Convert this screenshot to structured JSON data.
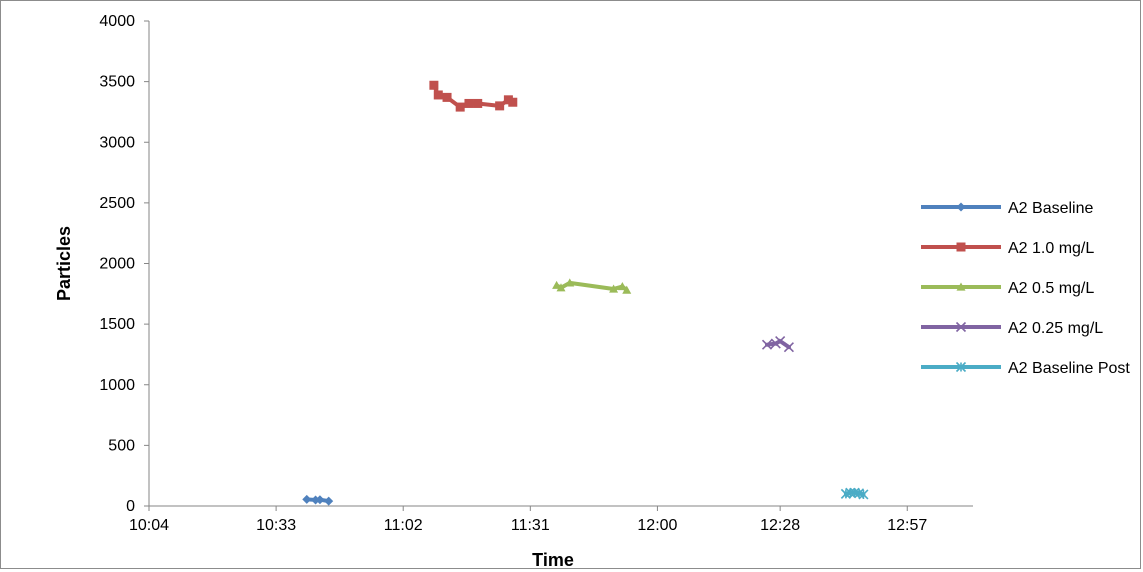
{
  "chart_data": {
    "type": "line",
    "title": "",
    "xlabel": "Time",
    "ylabel": "Particles",
    "x_is_time": true,
    "xlim": [
      "10:04",
      "13:12"
    ],
    "x_ticks": [
      "10:04",
      "10:33",
      "11:02",
      "11:31",
      "12:00",
      "12:28",
      "12:57"
    ],
    "ylim": [
      0,
      4000
    ],
    "y_ticks": [
      "0",
      "500",
      "1000",
      "1500",
      "2000",
      "2500",
      "3000",
      "3500",
      "4000"
    ],
    "grid": false,
    "legend_position": "right",
    "series": [
      {
        "name": "A2 Baseline",
        "color": "#4f81bd",
        "marker": "diamond",
        "points": [
          {
            "x": "10:40",
            "y": 55
          },
          {
            "x": "10:42",
            "y": 50
          },
          {
            "x": "10:43",
            "y": 52
          },
          {
            "x": "10:45",
            "y": 40
          }
        ]
      },
      {
        "name": "A2 1.0 mg/L",
        "color": "#c0504d",
        "marker": "square",
        "points": [
          {
            "x": "11:09",
            "y": 3470
          },
          {
            "x": "11:10",
            "y": 3390
          },
          {
            "x": "11:12",
            "y": 3370
          },
          {
            "x": "11:15",
            "y": 3290
          },
          {
            "x": "11:17",
            "y": 3320
          },
          {
            "x": "11:19",
            "y": 3320
          },
          {
            "x": "11:24",
            "y": 3300
          },
          {
            "x": "11:26",
            "y": 3350
          },
          {
            "x": "11:27",
            "y": 3330
          }
        ]
      },
      {
        "name": "A2 0.5 mg/L",
        "color": "#9bbb59",
        "marker": "triangle",
        "points": [
          {
            "x": "11:37",
            "y": 1820
          },
          {
            "x": "11:38",
            "y": 1800
          },
          {
            "x": "11:40",
            "y": 1840
          },
          {
            "x": "11:50",
            "y": 1790
          },
          {
            "x": "11:52",
            "y": 1810
          },
          {
            "x": "11:53",
            "y": 1780
          }
        ]
      },
      {
        "name": "A2 0.25 mg/L",
        "color": "#8064a2",
        "marker": "x",
        "points": [
          {
            "x": "12:25",
            "y": 1330
          },
          {
            "x": "12:27",
            "y": 1340
          },
          {
            "x": "12:28",
            "y": 1360
          },
          {
            "x": "12:30",
            "y": 1310
          }
        ]
      },
      {
        "name": "A2 Baseline Post",
        "color": "#4bacc6",
        "marker": "star",
        "points": [
          {
            "x": "12:43",
            "y": 100
          },
          {
            "x": "12:44",
            "y": 110
          },
          {
            "x": "12:45",
            "y": 110
          },
          {
            "x": "12:46",
            "y": 105
          },
          {
            "x": "12:47",
            "y": 95
          }
        ]
      }
    ]
  }
}
